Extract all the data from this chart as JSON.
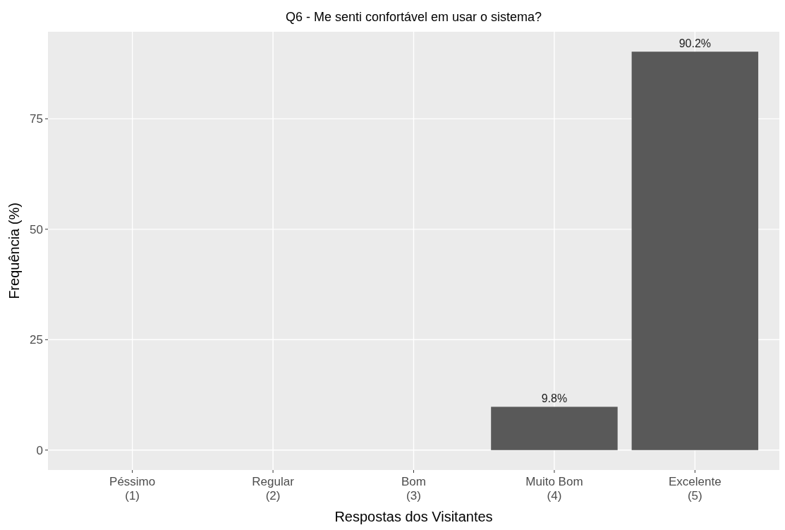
{
  "chart_data": {
    "type": "bar",
    "title": "Q6 - Me senti confortável em usar o sistema?",
    "xlabel": "Respostas dos Visitantes",
    "ylabel": "Frequência (%)",
    "categories": [
      "Péssimo\n(1)",
      "Regular\n(2)",
      "Bom\n(3)",
      "Muito Bom\n(4)",
      "Excelente\n(5)"
    ],
    "values": [
      0,
      0,
      0,
      9.8,
      90.2
    ],
    "value_labels": [
      null,
      null,
      null,
      "9.8%",
      "90.2%"
    ],
    "color": "#595959",
    "ylim": [
      -4.51,
      94.71
    ],
    "yticks": [
      0,
      25,
      50,
      75
    ],
    "grid": true
  }
}
